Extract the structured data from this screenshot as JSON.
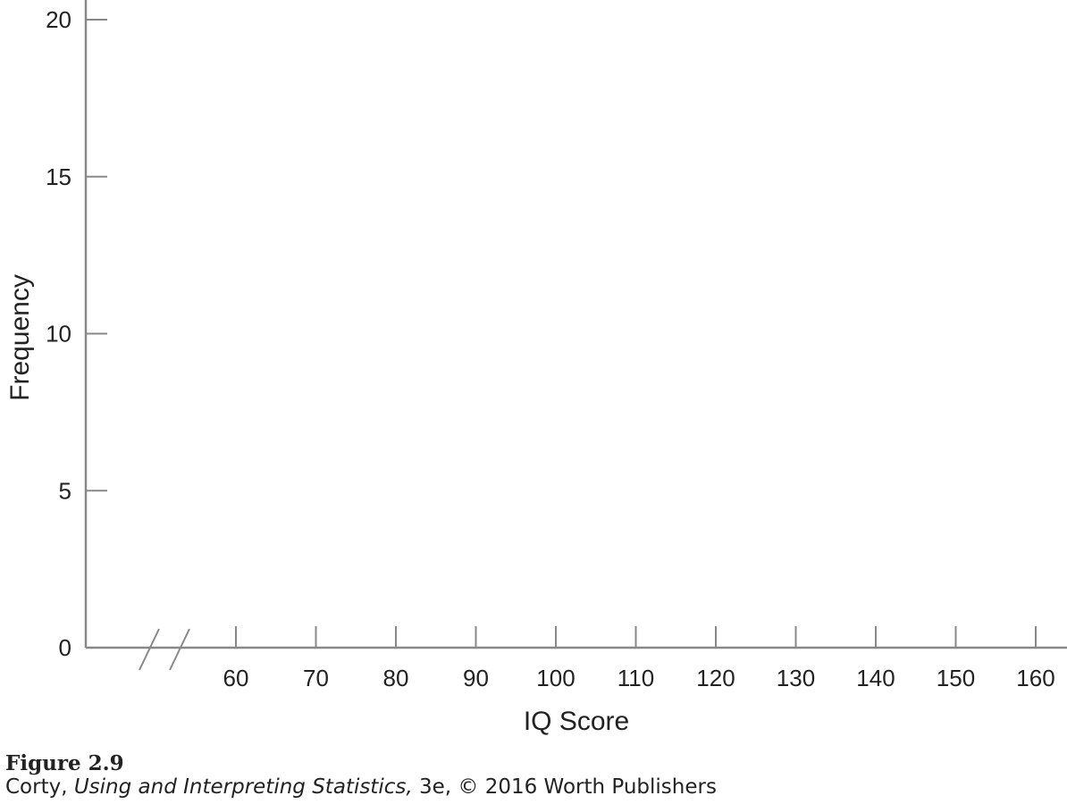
{
  "chart_data": {
    "type": "bar",
    "title": "",
    "xlabel": "IQ Score",
    "ylabel": "Frequency",
    "x_ticks": [
      60,
      70,
      80,
      90,
      100,
      110,
      120,
      130,
      140,
      150,
      160
    ],
    "y_ticks": [
      0,
      5,
      10,
      15,
      20
    ],
    "xlim": [
      60,
      160
    ],
    "ylim": [
      0,
      20
    ],
    "x_axis_break": true,
    "grid": false,
    "values": [],
    "colors": {
      "axis": "#888888",
      "text": "#222222"
    }
  },
  "caption": {
    "figure_label": "Figure 2.9",
    "credit_author": "Corty, ",
    "credit_title": "Using and Interpreting Statistics,",
    "credit_rest": " 3e, © 2016 Worth Publishers"
  }
}
